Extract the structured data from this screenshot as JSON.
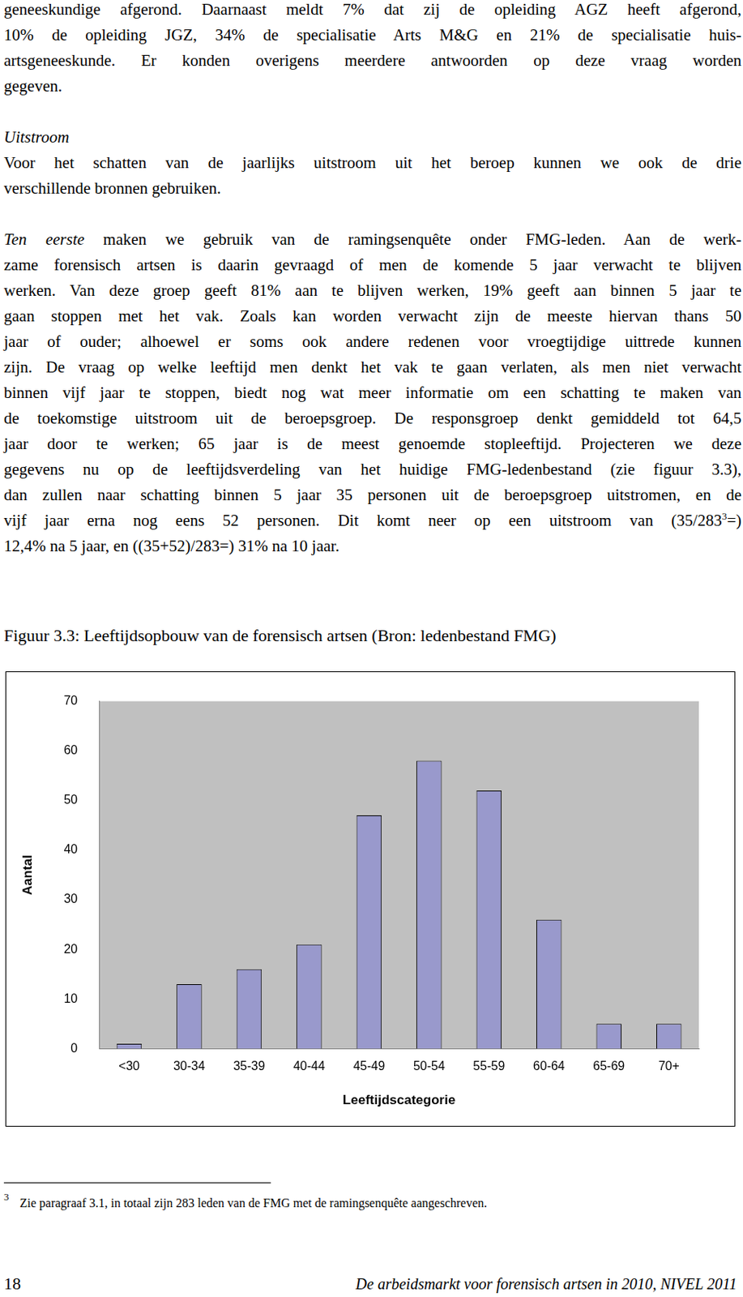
{
  "document": {
    "paragraphs": [
      {
        "lines": [
          "geneeskundige afgerond. Daarnaast meldt 7% dat zij de opleiding AGZ heeft afgerond,",
          "10% de opleiding JGZ, 34% de specialisatie Arts M&G en 21% de specialisatie huis-",
          "artsgeneeskunde. Er konden overigens meerdere antwoorden op deze vraag worden",
          "gegeven."
        ]
      },
      {
        "lines": [
          [
            {
              "text": "Uitstroom",
              "italic": true
            }
          ],
          "Voor het schatten van de jaarlijks uitstroom uit het beroep kunnen we ook de drie",
          "verschillende bronnen gebruiken."
        ]
      },
      {
        "lines": [
          [
            {
              "text": "Ten eerste",
              "italic": true
            },
            {
              "text": " maken we gebruik van de ramingsenquête onder FMG-leden. Aan de werk-"
            }
          ],
          "zame forensisch artsen is daarin gevraagd of men de komende 5 jaar verwacht te blijven",
          "werken. Van deze groep geeft 81% aan te blijven werken, 19% geeft aan binnen 5 jaar te",
          "gaan stoppen met het vak. Zoals kan worden verwacht zijn de meeste hiervan thans 50",
          "jaar of ouder; alhoewel er soms ook andere redenen voor vroegtijdige uittrede kunnen",
          "zijn. De vraag op welke leeftijd men denkt het vak te gaan verlaten, als men niet verwacht",
          "binnen vijf jaar te stoppen, biedt nog wat meer informatie om een schatting te maken van",
          "de toekomstige uitstroom uit de beroepsgroep. De responsgroep denkt gemiddeld tot 64,5",
          "jaar door te werken; 65 jaar is de meest genoemde stopleeftijd. Projecteren we deze",
          "gegevens nu op de leeftijdsverdeling van het huidige FMG-ledenbestand (zie figuur 3.3),",
          "dan zullen naar schatting binnen 5 jaar 35 personen uit de beroepsgroep uitstromen, en de",
          [
            {
              "text": "vijf jaar erna nog eens 52 personen. Dit komt neer op een uitstroom van (35/283"
            },
            {
              "text": "3",
              "sup": true
            },
            {
              "text": "=)"
            }
          ],
          "12,4% na 5 jaar, en ((35+52)/283=) 31% na 10 jaar."
        ]
      }
    ],
    "figure_caption": "Figuur 3.3: Leeftijdsopbouw van de forensisch artsen (Bron: ledenbestand FMG)",
    "footnote": {
      "mark": "3",
      "text": "Zie paragraaf 3.1, in totaal zijn 283 leden van de FMG met de ramingsenquête aangeschreven."
    },
    "footer": {
      "page": "18",
      "title": "De arbeidsmarkt voor forensisch artsen in 2010, NIVEL 2011"
    }
  },
  "chart_data": {
    "type": "bar",
    "x_label": "Leeftijdscategorie",
    "y_label": "Aantal",
    "categories": [
      "<30",
      "30-34",
      "35-39",
      "40-44",
      "45-49",
      "50-54",
      "55-59",
      "60-64",
      "65-69",
      "70+"
    ],
    "values": [
      1,
      13,
      16,
      21,
      47,
      58,
      52,
      26,
      5,
      5
    ],
    "color": "#9999cc",
    "ylim": [
      0,
      70
    ],
    "yticks": [
      0,
      10,
      20,
      30,
      40,
      50,
      60,
      70
    ],
    "grid": false
  }
}
